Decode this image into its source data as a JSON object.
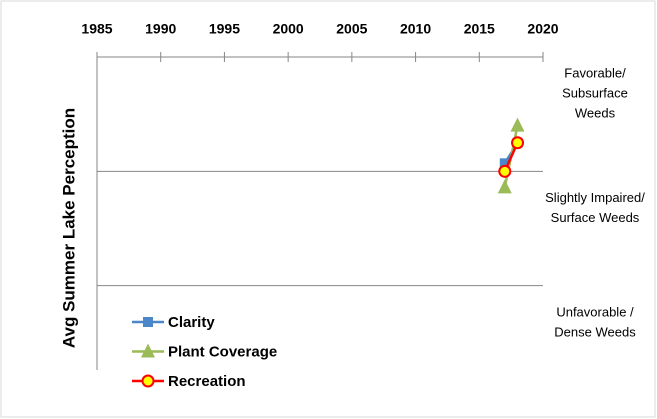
{
  "chart_data": {
    "type": "line",
    "y_label": "Avg Summer Lake Perception",
    "x": [
      2017,
      2018
    ],
    "series": [
      {
        "name": "Clarity",
        "color": "#4a86c8",
        "marker": "square",
        "values": [
          2.07,
          2.25
        ]
      },
      {
        "name": "Plant Coverage",
        "color": "#9bbb59",
        "marker": "triangle",
        "values": [
          1.86,
          2.4
        ]
      },
      {
        "name": "Recreation",
        "color": "#ff0000",
        "marker": "circle",
        "values": [
          2.0,
          2.25
        ]
      }
    ],
    "xlim": [
      1985,
      2020
    ],
    "xticks": [
      1985,
      1990,
      1995,
      2000,
      2005,
      2010,
      2015,
      2020
    ],
    "ylim": [
      0,
      3
    ],
    "yticks": [
      1,
      2,
      3
    ],
    "band_labels": [
      {
        "lines": [
          "Favorable/",
          "Subsurface",
          "Weeds"
        ],
        "y": 2.5
      },
      {
        "lines": [
          "Slightly Impaired/",
          "Surface Weeds"
        ],
        "y": 1.5
      },
      {
        "lines": [
          "Unfavorable /",
          "Dense Weeds"
        ],
        "y": 0.5
      }
    ],
    "grid": true,
    "legend": "lower left"
  }
}
